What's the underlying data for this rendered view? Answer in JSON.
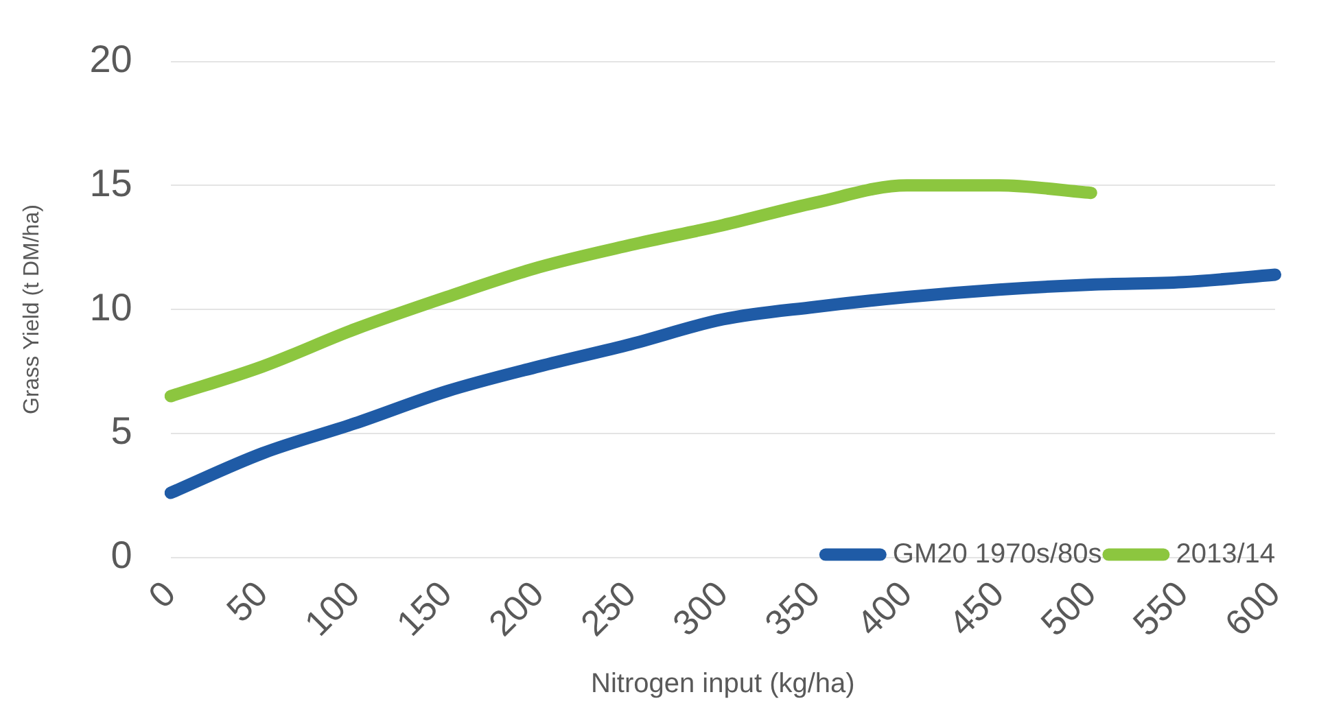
{
  "chart_data": {
    "type": "line",
    "xlabel": "Nitrogen input (kg/ha)",
    "ylabel": "Grass Yield (t DM/ha)",
    "categories": [
      "0",
      "50",
      "100",
      "150",
      "200",
      "250",
      "300",
      "350",
      "400",
      "450",
      "500",
      "550",
      "600"
    ],
    "series": [
      {
        "name": "GM20 1970s/80s",
        "color": "#1f5ba6",
        "values": [
          2.6,
          4.2,
          5.4,
          6.7,
          7.7,
          8.6,
          9.6,
          10.1,
          10.5,
          10.8,
          11.0,
          11.1,
          11.4
        ]
      },
      {
        "name": "2013/14",
        "color": "#8cc63f",
        "values": [
          6.5,
          7.7,
          9.2,
          10.5,
          11.7,
          12.6,
          13.4,
          14.3,
          15.0,
          15.0,
          14.7,
          null,
          null
        ]
      }
    ],
    "ylim": [
      0,
      20
    ],
    "yticks": [
      0,
      5,
      10,
      15,
      20
    ],
    "grid": "y",
    "legend": "bottom right",
    "marker": "none",
    "line_style": "solid"
  }
}
